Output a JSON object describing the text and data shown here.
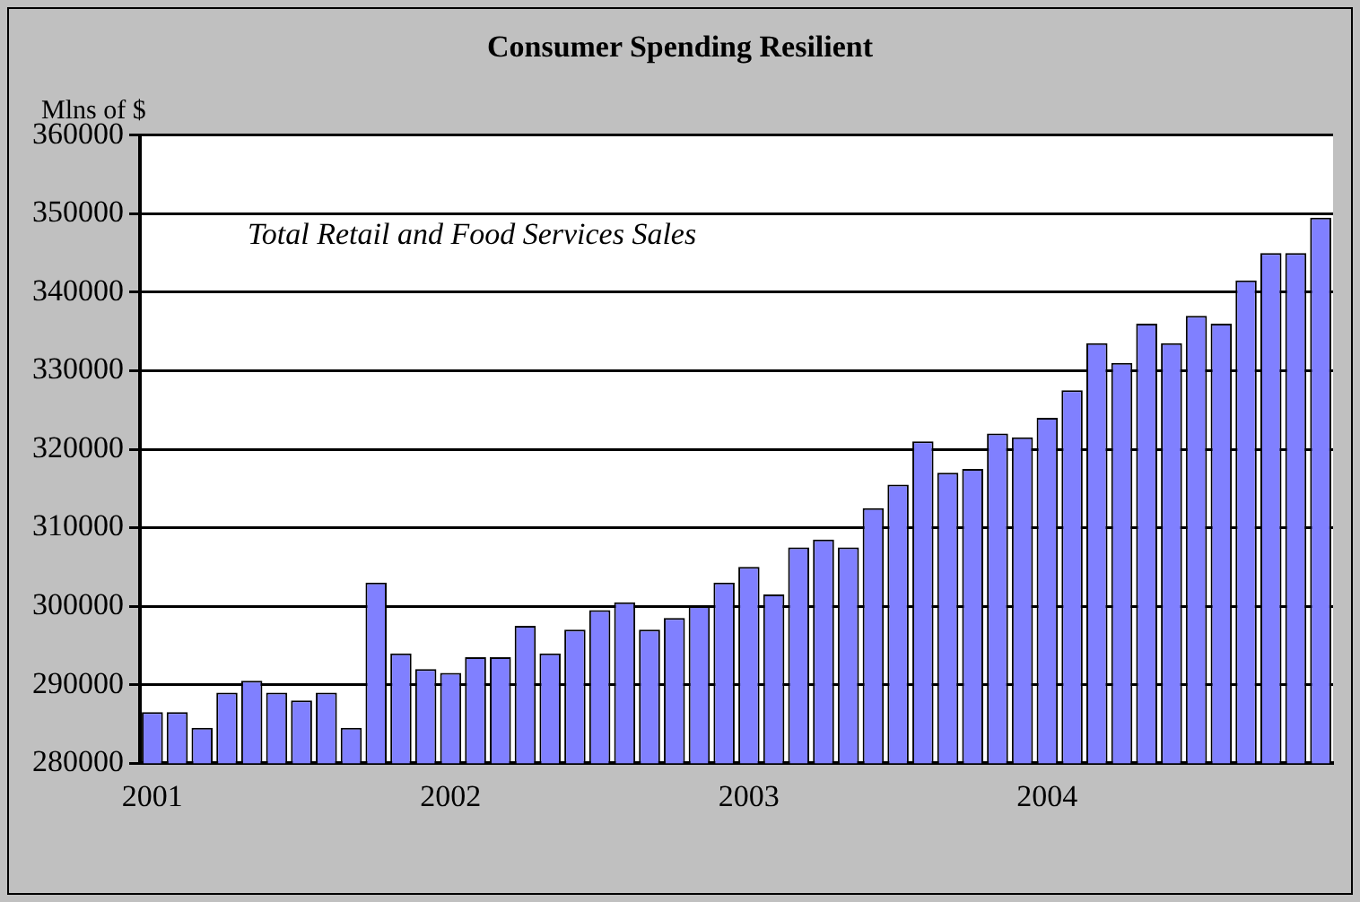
{
  "chart_data": {
    "type": "bar",
    "title": "Consumer Spending Resilient",
    "ylabel": "Mlns of $",
    "annotations": [
      "Total Retail and Food Services Sales"
    ],
    "categories": [
      "2001",
      null,
      null,
      null,
      null,
      null,
      null,
      null,
      null,
      null,
      null,
      null,
      "2002",
      null,
      null,
      null,
      null,
      null,
      null,
      null,
      null,
      null,
      null,
      null,
      "2003",
      null,
      null,
      null,
      null,
      null,
      null,
      null,
      null,
      null,
      null,
      null,
      "2004",
      null,
      null,
      null,
      null,
      null,
      null,
      null,
      null,
      null,
      null,
      null
    ],
    "values": [
      286500,
      286500,
      284500,
      289000,
      290500,
      289000,
      288000,
      289000,
      284500,
      303000,
      294000,
      292000,
      291500,
      293500,
      293500,
      297500,
      294000,
      297000,
      299500,
      300500,
      297000,
      298500,
      300000,
      303000,
      305000,
      301500,
      307500,
      308500,
      307500,
      312500,
      315500,
      321000,
      317000,
      317500,
      322000,
      321500,
      324000,
      327500,
      333500,
      331000,
      336000,
      333500,
      337000,
      336000,
      341500,
      345000,
      345000,
      349500
    ],
    "color": "#8080ff",
    "ylim": [
      280000,
      360000
    ],
    "yticks": [
      280000,
      290000,
      300000,
      310000,
      320000,
      330000,
      340000,
      350000,
      360000
    ],
    "grid": "y",
    "legend": false
  }
}
